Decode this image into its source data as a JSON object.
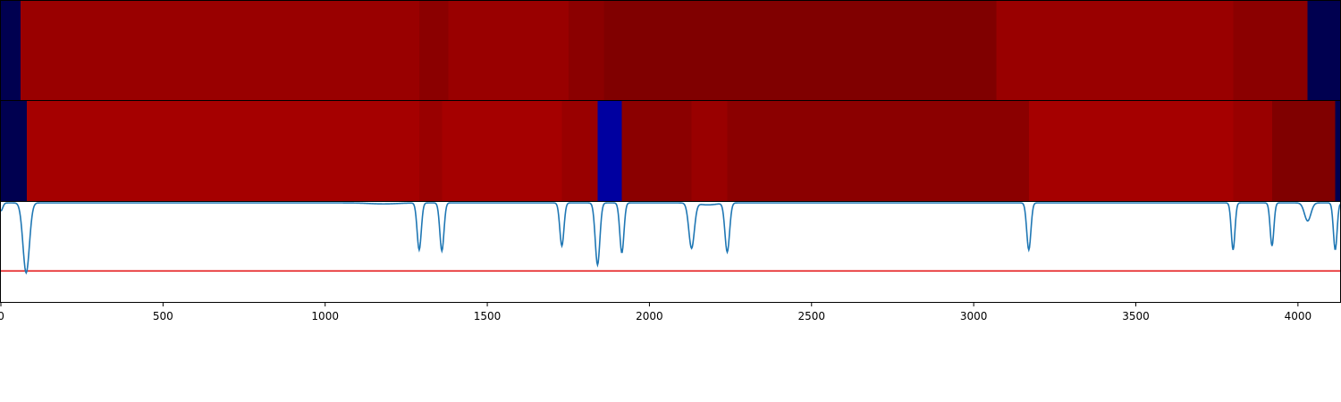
{
  "chart_data": {
    "type": "heatmap",
    "title": "",
    "xlabel": "",
    "ylabel": "",
    "xlim": [
      0,
      4130
    ],
    "grid": false,
    "legend": "none",
    "x_ticks": [
      "0",
      "500",
      "1000",
      "1500",
      "2000",
      "2500",
      "3000",
      "3500",
      "4000"
    ],
    "x_tick_values": [
      0,
      500,
      1000,
      1500,
      2000,
      2500,
      3000,
      3500,
      4000
    ],
    "colors": {
      "line": "#1f77b4",
      "threshold": "#e41a1c",
      "axes": "#000000"
    },
    "segment_rows": [
      {
        "segments": [
          {
            "start": 0,
            "end": 60,
            "color": "#000050"
          },
          {
            "start": 60,
            "end": 1290,
            "color": "#990000"
          },
          {
            "start": 1290,
            "end": 1380,
            "color": "#8b0000"
          },
          {
            "start": 1380,
            "end": 1750,
            "color": "#990000"
          },
          {
            "start": 1750,
            "end": 1860,
            "color": "#8b0000"
          },
          {
            "start": 1860,
            "end": 3070,
            "color": "#800000"
          },
          {
            "start": 3070,
            "end": 3800,
            "color": "#990000"
          },
          {
            "start": 3800,
            "end": 4030,
            "color": "#8b0000"
          },
          {
            "start": 4030,
            "end": 4130,
            "color": "#000050"
          }
        ]
      },
      {
        "segments": [
          {
            "start": 0,
            "end": 80,
            "color": "#000050"
          },
          {
            "start": 80,
            "end": 1290,
            "color": "#a50000"
          },
          {
            "start": 1290,
            "end": 1360,
            "color": "#990000"
          },
          {
            "start": 1360,
            "end": 1730,
            "color": "#a50000"
          },
          {
            "start": 1730,
            "end": 1840,
            "color": "#990000"
          },
          {
            "start": 1840,
            "end": 1915,
            "color": "#0000a0"
          },
          {
            "start": 1915,
            "end": 2130,
            "color": "#8b0000"
          },
          {
            "start": 2130,
            "end": 2240,
            "color": "#990000"
          },
          {
            "start": 2240,
            "end": 3170,
            "color": "#8b0000"
          },
          {
            "start": 3170,
            "end": 3800,
            "color": "#a50000"
          },
          {
            "start": 3800,
            "end": 3920,
            "color": "#990000"
          },
          {
            "start": 3920,
            "end": 4115,
            "color": "#800000"
          },
          {
            "start": 4115,
            "end": 4130,
            "color": "#000050"
          }
        ]
      }
    ],
    "signal": {
      "ylim": [
        0,
        1
      ],
      "baseline": 0.99,
      "threshold": 0.31,
      "dips": [
        {
          "x": 0,
          "depth": 0.08,
          "width": 8
        },
        {
          "x": 78,
          "depth": 0.7,
          "width": 14
        },
        {
          "x": 1180,
          "depth": 0.01,
          "width": 60
        },
        {
          "x": 1290,
          "depth": 0.47,
          "width": 9
        },
        {
          "x": 1360,
          "depth": 0.48,
          "width": 9
        },
        {
          "x": 1730,
          "depth": 0.43,
          "width": 9
        },
        {
          "x": 1840,
          "depth": 0.62,
          "width": 10
        },
        {
          "x": 1915,
          "depth": 0.5,
          "width": 9
        },
        {
          "x": 2130,
          "depth": 0.45,
          "width": 12
        },
        {
          "x": 2180,
          "depth": 0.02,
          "width": 40
        },
        {
          "x": 2240,
          "depth": 0.49,
          "width": 10
        },
        {
          "x": 3170,
          "depth": 0.47,
          "width": 9
        },
        {
          "x": 3800,
          "depth": 0.47,
          "width": 8
        },
        {
          "x": 3920,
          "depth": 0.43,
          "width": 8
        },
        {
          "x": 4030,
          "depth": 0.18,
          "width": 14
        },
        {
          "x": 4115,
          "depth": 0.47,
          "width": 8
        }
      ]
    }
  }
}
